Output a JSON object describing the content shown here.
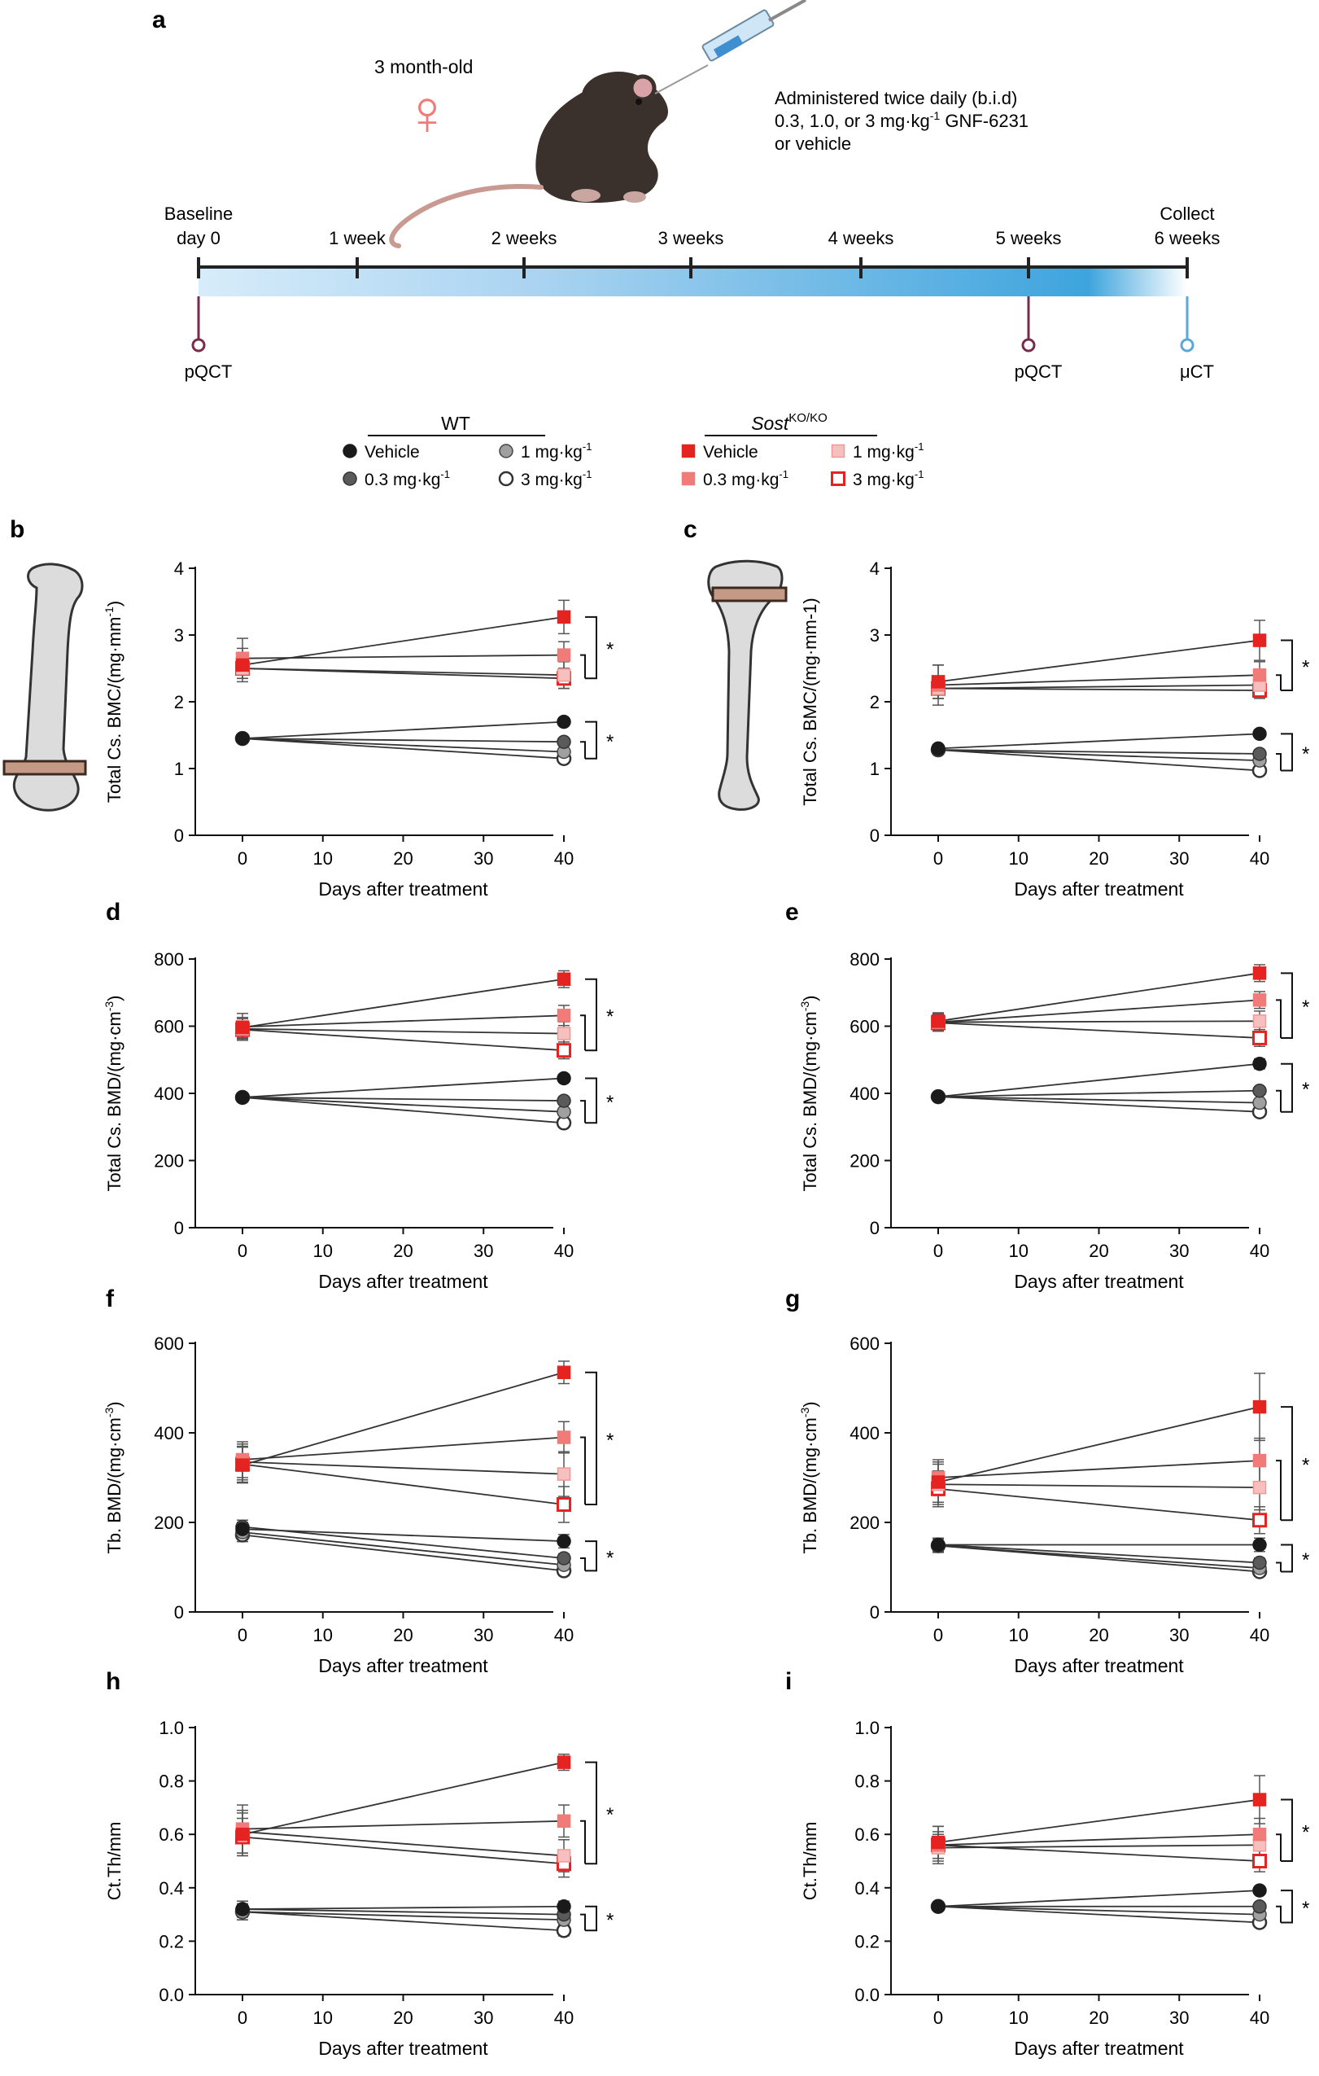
{
  "panel_a": {
    "letter": "a",
    "age_label": "3 month-old",
    "female_symbol": "♀",
    "admin_lines": [
      "Administered twice daily (b.i.d)",
      "0.3, 1.0, or 3 mg·kg",
      "-1",
      " GNF-6231",
      "or vehicle"
    ],
    "timeline_top": [
      {
        "lines": [
          "Baseline",
          "day 0"
        ]
      },
      {
        "lines": [
          "1 week"
        ]
      },
      {
        "lines": [
          "2 weeks"
        ]
      },
      {
        "lines": [
          "3 weeks"
        ]
      },
      {
        "lines": [
          "4 weeks"
        ]
      },
      {
        "lines": [
          "5 weeks"
        ]
      },
      {
        "lines": [
          "Collect",
          "6 weeks"
        ]
      }
    ],
    "markers": [
      {
        "label": "pQCT",
        "color": "#7a2a4a"
      },
      {
        "label": "pQCT",
        "color": "#7a2a4a"
      },
      {
        "label": "μCT",
        "color": "#5aa8d8"
      }
    ]
  },
  "legend": {
    "wt_title": "WT",
    "ko_title_main": "Sost",
    "ko_title_sup": "KO/KO",
    "wt_items": [
      "Vehicle",
      "0.3 mg·kg",
      "1 mg·kg",
      "3 mg·kg"
    ],
    "ko_items": [
      "Vehicle",
      "0.3 mg·kg",
      "1 mg·kg",
      "3 mg·kg"
    ],
    "sup": "-1"
  },
  "colors": {
    "wt": [
      "#1a1a1a",
      "#5a5a5a",
      "#a0a0a0",
      "#ffffff"
    ],
    "ko": [
      "#e52320",
      "#f07b78",
      "#f6c0bf",
      "#ffffff"
    ],
    "ko_edge": [
      "#e52320",
      "#f07b78",
      "#ef9a98",
      "#e52320"
    ],
    "wt_edge": [
      "#1a1a1a",
      "#333333",
      "#444444",
      "#333333"
    ]
  },
  "chart_data": [
    {
      "id": "b",
      "type": "scatter",
      "letter": "b",
      "ylabel": "Total Cs. BMC/(mg·mm",
      "ylabel_sup": "-1",
      "ylabel_end": ")",
      "xlabel": "Days after treatment",
      "ylim": [
        0,
        4
      ],
      "yticks": [
        0,
        1,
        2,
        3,
        4
      ],
      "xticks": [
        0,
        10,
        20,
        30,
        40
      ],
      "x": [
        0,
        40
      ],
      "series": [
        {
          "name": "WT Vehicle",
          "values": [
            1.45,
            1.7
          ],
          "err": [
            0.05,
            0.05
          ]
        },
        {
          "name": "WT 0.3 mg·kg-1",
          "values": [
            1.45,
            1.4
          ],
          "err": [
            0.05,
            0.05
          ]
        },
        {
          "name": "WT 1 mg·kg-1",
          "values": [
            1.45,
            1.25
          ],
          "err": [
            0.05,
            0.05
          ]
        },
        {
          "name": "WT 3 mg·kg-1",
          "values": [
            1.45,
            1.15
          ],
          "err": [
            0.05,
            0.05
          ]
        },
        {
          "name": "KO Vehicle",
          "values": [
            2.55,
            3.27
          ],
          "err": [
            0.25,
            0.25
          ]
        },
        {
          "name": "KO 0.3 mg·kg-1",
          "values": [
            2.65,
            2.7
          ],
          "err": [
            0.3,
            0.2
          ]
        },
        {
          "name": "KO 1 mg·kg-1",
          "values": [
            2.5,
            2.4
          ],
          "err": [
            0.15,
            0.2
          ]
        },
        {
          "name": "KO 3 mg·kg-1",
          "values": [
            2.5,
            2.35
          ],
          "err": [
            0.15,
            0.15
          ]
        }
      ],
      "annotations": [
        "*",
        "*"
      ]
    },
    {
      "id": "c",
      "type": "scatter",
      "letter": "c",
      "ylabel": "Total Cs. BMC/(mg·mm-1)",
      "ylabel_sup": "",
      "ylabel_end": "",
      "xlabel": "Days after treatment",
      "ylim": [
        0,
        4
      ],
      "yticks": [
        0,
        1,
        2,
        3,
        4
      ],
      "xticks": [
        0,
        10,
        20,
        30,
        40
      ],
      "x": [
        0,
        40
      ],
      "series": [
        {
          "name": "WT Vehicle",
          "values": [
            1.3,
            1.52
          ],
          "err": [
            0.05,
            0.05
          ]
        },
        {
          "name": "WT 0.3 mg·kg-1",
          "values": [
            1.28,
            1.22
          ],
          "err": [
            0.05,
            0.05
          ]
        },
        {
          "name": "WT 1 mg·kg-1",
          "values": [
            1.28,
            1.12
          ],
          "err": [
            0.05,
            0.05
          ]
        },
        {
          "name": "WT 3 mg·kg-1",
          "values": [
            1.28,
            0.97
          ],
          "err": [
            0.05,
            0.05
          ]
        },
        {
          "name": "KO Vehicle",
          "values": [
            2.3,
            2.92
          ],
          "err": [
            0.25,
            0.3
          ]
        },
        {
          "name": "KO 0.3 mg·kg-1",
          "values": [
            2.25,
            2.4
          ],
          "err": [
            0.3,
            0.2
          ]
        },
        {
          "name": "KO 1 mg·kg-1",
          "values": [
            2.2,
            2.25
          ],
          "err": [
            0.15,
            0.15
          ]
        },
        {
          "name": "KO 3 mg·kg-1",
          "values": [
            2.2,
            2.17
          ],
          "err": [
            0.15,
            0.12
          ]
        }
      ],
      "annotations": [
        "*",
        "*"
      ]
    },
    {
      "id": "d",
      "type": "scatter",
      "letter": "d",
      "ylabel": "Total Cs. BMD/(mg·cm",
      "ylabel_sup": "-3",
      "ylabel_end": ")",
      "xlabel": "Days after treatment",
      "ylim": [
        0,
        800
      ],
      "yticks": [
        0,
        200,
        400,
        600,
        800
      ],
      "xticks": [
        0,
        10,
        20,
        30,
        40
      ],
      "x": [
        0,
        40
      ],
      "series": [
        {
          "name": "WT Vehicle",
          "values": [
            388,
            445
          ],
          "err": [
            10,
            10
          ]
        },
        {
          "name": "WT 0.3 mg·kg-1",
          "values": [
            388,
            378
          ],
          "err": [
            10,
            10
          ]
        },
        {
          "name": "WT 1 mg·kg-1",
          "values": [
            388,
            345
          ],
          "err": [
            10,
            10
          ]
        },
        {
          "name": "WT 3 mg·kg-1",
          "values": [
            388,
            312
          ],
          "err": [
            10,
            10
          ]
        },
        {
          "name": "KO Vehicle",
          "values": [
            596,
            740
          ],
          "err": [
            30,
            25
          ]
        },
        {
          "name": "KO 0.3 mg·kg-1",
          "values": [
            598,
            632
          ],
          "err": [
            40,
            30
          ]
        },
        {
          "name": "KO 1 mg·kg-1",
          "values": [
            592,
            578
          ],
          "err": [
            30,
            35
          ]
        },
        {
          "name": "KO 3 mg·kg-1",
          "values": [
            590,
            528
          ],
          "err": [
            25,
            25
          ]
        }
      ],
      "annotations": [
        "*",
        "*"
      ]
    },
    {
      "id": "e",
      "type": "scatter",
      "letter": "e",
      "ylabel": "Total Cs. BMD/(mg·cm",
      "ylabel_sup": "-3",
      "ylabel_end": ")",
      "xlabel": "Days after treatment",
      "ylim": [
        0,
        800
      ],
      "yticks": [
        0,
        200,
        400,
        600,
        800
      ],
      "xticks": [
        0,
        10,
        20,
        30,
        40
      ],
      "x": [
        0,
        40
      ],
      "series": [
        {
          "name": "WT Vehicle",
          "values": [
            390,
            488
          ],
          "err": [
            10,
            15
          ]
        },
        {
          "name": "WT 0.3 mg·kg-1",
          "values": [
            390,
            408
          ],
          "err": [
            10,
            10
          ]
        },
        {
          "name": "WT 1 mg·kg-1",
          "values": [
            390,
            372
          ],
          "err": [
            10,
            10
          ]
        },
        {
          "name": "WT 3 mg·kg-1",
          "values": [
            390,
            345
          ],
          "err": [
            10,
            10
          ]
        },
        {
          "name": "KO Vehicle",
          "values": [
            615,
            758
          ],
          "err": [
            25,
            25
          ]
        },
        {
          "name": "KO 0.3 mg·kg-1",
          "values": [
            612,
            678
          ],
          "err": [
            25,
            25
          ]
        },
        {
          "name": "KO 1 mg·kg-1",
          "values": [
            612,
            615
          ],
          "err": [
            25,
            30
          ]
        },
        {
          "name": "KO 3 mg·kg-1",
          "values": [
            610,
            565
          ],
          "err": [
            25,
            25
          ]
        }
      ],
      "annotations": [
        "*",
        "*"
      ]
    },
    {
      "id": "f",
      "type": "scatter",
      "letter": "f",
      "ylabel": "Tb. BMD/(mg·cm",
      "ylabel_sup": "-3",
      "ylabel_end": ")",
      "xlabel": "Days after treatment",
      "ylim": [
        0,
        600
      ],
      "yticks": [
        0,
        200,
        400,
        600
      ],
      "xticks": [
        0,
        10,
        20,
        30,
        40
      ],
      "x": [
        0,
        40
      ],
      "series": [
        {
          "name": "WT Vehicle",
          "values": [
            185,
            158
          ],
          "err": [
            15,
            15
          ]
        },
        {
          "name": "WT 0.3 mg·kg-1",
          "values": [
            190,
            120
          ],
          "err": [
            15,
            10
          ]
        },
        {
          "name": "WT 1 mg·kg-1",
          "values": [
            178,
            105
          ],
          "err": [
            15,
            10
          ]
        },
        {
          "name": "WT 3 mg·kg-1",
          "values": [
            172,
            92
          ],
          "err": [
            15,
            10
          ]
        },
        {
          "name": "KO Vehicle",
          "values": [
            328,
            535
          ],
          "err": [
            40,
            25
          ]
        },
        {
          "name": "KO 0.3 mg·kg-1",
          "values": [
            340,
            390
          ],
          "err": [
            40,
            35
          ]
        },
        {
          "name": "KO 1 mg·kg-1",
          "values": [
            335,
            308
          ],
          "err": [
            40,
            50
          ]
        },
        {
          "name": "KO 3 mg·kg-1",
          "values": [
            330,
            240
          ],
          "err": [
            40,
            40
          ]
        }
      ],
      "annotations": [
        "*",
        "*"
      ]
    },
    {
      "id": "g",
      "type": "scatter",
      "letter": "g",
      "ylabel": "Tb. BMD/(mg·cm",
      "ylabel_sup": "-3",
      "ylabel_end": ")",
      "xlabel": "Days after treatment",
      "ylim": [
        0,
        600
      ],
      "yticks": [
        0,
        200,
        400,
        600
      ],
      "xticks": [
        0,
        10,
        20,
        30,
        40
      ],
      "x": [
        0,
        40
      ],
      "series": [
        {
          "name": "WT Vehicle",
          "values": [
            150,
            150
          ],
          "err": [
            15,
            15
          ]
        },
        {
          "name": "WT 0.3 mg·kg-1",
          "values": [
            150,
            110
          ],
          "err": [
            15,
            10
          ]
        },
        {
          "name": "WT 1 mg·kg-1",
          "values": [
            148,
            98
          ],
          "err": [
            15,
            10
          ]
        },
        {
          "name": "WT 3 mg·kg-1",
          "values": [
            148,
            90
          ],
          "err": [
            15,
            10
          ]
        },
        {
          "name": "KO Vehicle",
          "values": [
            290,
            458
          ],
          "err": [
            45,
            75
          ]
        },
        {
          "name": "KO 0.3 mg·kg-1",
          "values": [
            300,
            338
          ],
          "err": [
            40,
            50
          ]
        },
        {
          "name": "KO 1 mg·kg-1",
          "values": [
            285,
            278
          ],
          "err": [
            45,
            50
          ]
        },
        {
          "name": "KO 3 mg·kg-1",
          "values": [
            275,
            205
          ],
          "err": [
            40,
            30
          ]
        }
      ],
      "annotations": [
        "*",
        "*"
      ]
    },
    {
      "id": "h",
      "type": "scatter",
      "letter": "h",
      "ylabel": "Ct.Th/mm",
      "ylabel_sup": "",
      "ylabel_end": "",
      "xlabel": "Days after treatment",
      "ylim": [
        0,
        1.0
      ],
      "yticks": [
        0,
        0.2,
        0.4,
        0.6,
        0.8,
        1.0
      ],
      "ytick_labels": [
        "0.0",
        "0.2",
        "0.4",
        "0.6",
        "0.8",
        "1.0"
      ],
      "xticks": [
        0,
        10,
        20,
        30,
        40
      ],
      "x": [
        0,
        40
      ],
      "series": [
        {
          "name": "WT Vehicle",
          "values": [
            0.32,
            0.33
          ],
          "err": [
            0.03,
            0.02
          ]
        },
        {
          "name": "WT 0.3 mg·kg-1",
          "values": [
            0.32,
            0.3
          ],
          "err": [
            0.03,
            0.02
          ]
        },
        {
          "name": "WT 1 mg·kg-1",
          "values": [
            0.31,
            0.28
          ],
          "err": [
            0.03,
            0.02
          ]
        },
        {
          "name": "WT 3 mg·kg-1",
          "values": [
            0.31,
            0.24
          ],
          "err": [
            0.03,
            0.02
          ]
        },
        {
          "name": "KO Vehicle",
          "values": [
            0.6,
            0.87
          ],
          "err": [
            0.08,
            0.03
          ]
        },
        {
          "name": "KO 0.3 mg·kg-1",
          "values": [
            0.62,
            0.65
          ],
          "err": [
            0.09,
            0.06
          ]
        },
        {
          "name": "KO 1 mg·kg-1",
          "values": [
            0.61,
            0.52
          ],
          "err": [
            0.08,
            0.06
          ]
        },
        {
          "name": "KO 3 mg·kg-1",
          "values": [
            0.59,
            0.49
          ],
          "err": [
            0.07,
            0.05
          ]
        }
      ],
      "annotations": [
        "*",
        "*"
      ]
    },
    {
      "id": "i",
      "type": "scatter",
      "letter": "i",
      "ylabel": "Ct.Th/mm",
      "ylabel_sup": "",
      "ylabel_end": "",
      "xlabel": "Days after treatment",
      "ylim": [
        0,
        1.0
      ],
      "yticks": [
        0,
        0.2,
        0.4,
        0.6,
        0.8,
        1.0
      ],
      "ytick_labels": [
        "0.0",
        "0.2",
        "0.4",
        "0.6",
        "0.8",
        "1.0"
      ],
      "xticks": [
        0,
        10,
        20,
        30,
        40
      ],
      "x": [
        0,
        40
      ],
      "series": [
        {
          "name": "WT Vehicle",
          "values": [
            0.33,
            0.39
          ],
          "err": [
            0.01,
            0.01
          ]
        },
        {
          "name": "WT 0.3 mg·kg-1",
          "values": [
            0.33,
            0.33
          ],
          "err": [
            0.01,
            0.01
          ]
        },
        {
          "name": "WT 1 mg·kg-1",
          "values": [
            0.33,
            0.3
          ],
          "err": [
            0.01,
            0.01
          ]
        },
        {
          "name": "WT 3 mg·kg-1",
          "values": [
            0.33,
            0.27
          ],
          "err": [
            0.01,
            0.01
          ]
        },
        {
          "name": "KO Vehicle",
          "values": [
            0.57,
            0.73
          ],
          "err": [
            0.06,
            0.09
          ]
        },
        {
          "name": "KO 0.3 mg·kg-1",
          "values": [
            0.56,
            0.6
          ],
          "err": [
            0.07,
            0.06
          ]
        },
        {
          "name": "KO 1 mg·kg-1",
          "values": [
            0.55,
            0.56
          ],
          "err": [
            0.05,
            0.05
          ]
        },
        {
          "name": "KO 3 mg·kg-1",
          "values": [
            0.56,
            0.5
          ],
          "err": [
            0.05,
            0.04
          ]
        }
      ],
      "annotations": [
        "*",
        "*"
      ]
    }
  ]
}
